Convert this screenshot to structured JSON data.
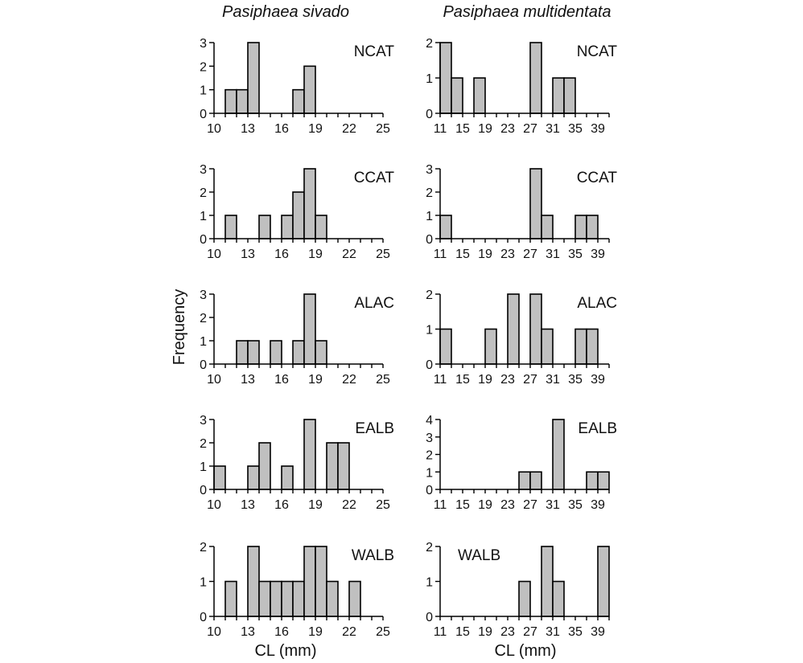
{
  "figure": {
    "ylabel": "Frequency",
    "xlabel": "CL (mm)",
    "left_title": "Pasiphaea sivado",
    "right_title": "Pasiphaea multidentata"
  },
  "chart_data": [
    {
      "type": "bar",
      "species": "Pasiphaea sivado",
      "region": "NCAT",
      "x_start": 10,
      "bin_width": 1,
      "x_ticks": [
        10,
        13,
        16,
        19,
        22,
        25
      ],
      "ylim": [
        0,
        3
      ],
      "y_ticks": [
        0,
        1,
        2,
        3
      ],
      "values": [
        0,
        1,
        1,
        3,
        0,
        0,
        0,
        1,
        2,
        0,
        0,
        0,
        0,
        0,
        0
      ]
    },
    {
      "type": "bar",
      "species": "Pasiphaea sivado",
      "region": "CCAT",
      "x_start": 10,
      "bin_width": 1,
      "x_ticks": [
        10,
        13,
        16,
        19,
        22,
        25
      ],
      "ylim": [
        0,
        3
      ],
      "y_ticks": [
        0,
        1,
        2,
        3
      ],
      "values": [
        0,
        1,
        0,
        0,
        1,
        0,
        1,
        2,
        3,
        1,
        0,
        0,
        0,
        0,
        0
      ]
    },
    {
      "type": "bar",
      "species": "Pasiphaea sivado",
      "region": "ALAC",
      "x_start": 10,
      "bin_width": 1,
      "x_ticks": [
        10,
        13,
        16,
        19,
        22,
        25
      ],
      "ylim": [
        0,
        3
      ],
      "y_ticks": [
        0,
        1,
        2,
        3
      ],
      "values": [
        0,
        0,
        1,
        1,
        0,
        1,
        0,
        1,
        3,
        1,
        0,
        0,
        0,
        0,
        0
      ]
    },
    {
      "type": "bar",
      "species": "Pasiphaea sivado",
      "region": "EALB",
      "x_start": 10,
      "bin_width": 1,
      "x_ticks": [
        10,
        13,
        16,
        19,
        22,
        25
      ],
      "ylim": [
        0,
        3
      ],
      "y_ticks": [
        0,
        1,
        2,
        3
      ],
      "values": [
        1,
        0,
        0,
        1,
        2,
        0,
        1,
        0,
        3,
        0,
        2,
        2,
        0,
        0,
        0
      ]
    },
    {
      "type": "bar",
      "species": "Pasiphaea sivado",
      "region": "WALB",
      "x_start": 10,
      "bin_width": 1,
      "x_ticks": [
        10,
        13,
        16,
        19,
        22,
        25
      ],
      "ylim": [
        0,
        2
      ],
      "y_ticks": [
        0,
        1,
        2
      ],
      "values": [
        0,
        1,
        0,
        2,
        1,
        1,
        1,
        1,
        2,
        2,
        1,
        0,
        1,
        0,
        0
      ]
    },
    {
      "type": "bar",
      "species": "Pasiphaea multidentata",
      "region": "NCAT",
      "x_start": 11,
      "bin_width": 2,
      "x_ticks": [
        11,
        15,
        19,
        23,
        27,
        31,
        35,
        39
      ],
      "ylim": [
        0,
        2
      ],
      "y_ticks": [
        0,
        1,
        2
      ],
      "values": [
        2,
        1,
        0,
        1,
        0,
        0,
        0,
        0,
        2,
        0,
        1,
        1,
        0,
        0,
        0
      ]
    },
    {
      "type": "bar",
      "species": "Pasiphaea multidentata",
      "region": "CCAT",
      "x_start": 11,
      "bin_width": 2,
      "x_ticks": [
        11,
        15,
        19,
        23,
        27,
        31,
        35,
        39
      ],
      "ylim": [
        0,
        3
      ],
      "y_ticks": [
        0,
        1,
        2,
        3
      ],
      "values": [
        1,
        0,
        0,
        0,
        0,
        0,
        0,
        0,
        3,
        1,
        0,
        0,
        1,
        1,
        0
      ]
    },
    {
      "type": "bar",
      "species": "Pasiphaea multidentata",
      "region": "ALAC",
      "x_start": 11,
      "bin_width": 2,
      "x_ticks": [
        11,
        15,
        19,
        23,
        27,
        31,
        35,
        39
      ],
      "ylim": [
        0,
        2
      ],
      "y_ticks": [
        0,
        1,
        2
      ],
      "values": [
        1,
        0,
        0,
        0,
        1,
        0,
        2,
        0,
        2,
        1,
        0,
        0,
        1,
        1,
        0
      ]
    },
    {
      "type": "bar",
      "species": "Pasiphaea multidentata",
      "region": "EALB",
      "x_start": 11,
      "bin_width": 2,
      "x_ticks": [
        11,
        15,
        19,
        23,
        27,
        31,
        35,
        39
      ],
      "ylim": [
        0,
        4
      ],
      "y_ticks": [
        0,
        1,
        2,
        3,
        4
      ],
      "values": [
        0,
        0,
        0,
        0,
        0,
        0,
        0,
        1,
        1,
        0,
        4,
        0,
        0,
        1,
        1
      ]
    },
    {
      "type": "bar",
      "species": "Pasiphaea multidentata",
      "region": "WALB",
      "x_start": 11,
      "bin_width": 2,
      "x_ticks": [
        11,
        15,
        19,
        23,
        27,
        31,
        35,
        39
      ],
      "ylim": [
        0,
        2
      ],
      "y_ticks": [
        0,
        1,
        2
      ],
      "values": [
        0,
        0,
        0,
        0,
        0,
        0,
        0,
        1,
        0,
        2,
        1,
        0,
        0,
        0,
        2
      ]
    }
  ]
}
